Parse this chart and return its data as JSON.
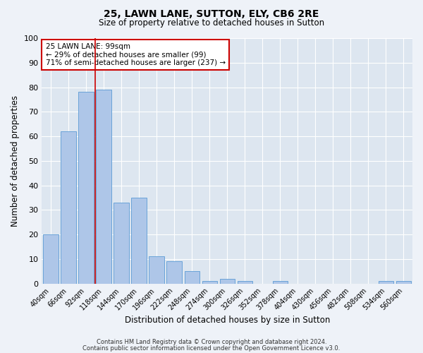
{
  "title": "25, LAWN LANE, SUTTON, ELY, CB6 2RE",
  "subtitle": "Size of property relative to detached houses in Sutton",
  "xlabel": "Distribution of detached houses by size in Sutton",
  "ylabel": "Number of detached properties",
  "bar_labels": [
    "40sqm",
    "66sqm",
    "92sqm",
    "118sqm",
    "144sqm",
    "170sqm",
    "196sqm",
    "222sqm",
    "248sqm",
    "274sqm",
    "300sqm",
    "326sqm",
    "352sqm",
    "378sqm",
    "404sqm",
    "430sqm",
    "456sqm",
    "482sqm",
    "508sqm",
    "534sqm",
    "560sqm"
  ],
  "bar_values": [
    20,
    62,
    78,
    79,
    33,
    35,
    11,
    9,
    5,
    1,
    2,
    1,
    0,
    1,
    0,
    0,
    0,
    0,
    0,
    1,
    1
  ],
  "bar_color": "#aec6e8",
  "bar_edgecolor": "#5b9bd5",
  "figure_facecolor": "#eef2f8",
  "axes_facecolor": "#dde6f0",
  "vline_x": 2.5,
  "vline_color": "#cc0000",
  "annotation_text": "25 LAWN LANE: 99sqm\n← 29% of detached houses are smaller (99)\n71% of semi-detached houses are larger (237) →",
  "annotation_box_edgecolor": "#cc0000",
  "ylim": [
    0,
    100
  ],
  "yticks": [
    0,
    10,
    20,
    30,
    40,
    50,
    60,
    70,
    80,
    90,
    100
  ],
  "footer_line1": "Contains HM Land Registry data © Crown copyright and database right 2024.",
  "footer_line2": "Contains public sector information licensed under the Open Government Licence v3.0."
}
